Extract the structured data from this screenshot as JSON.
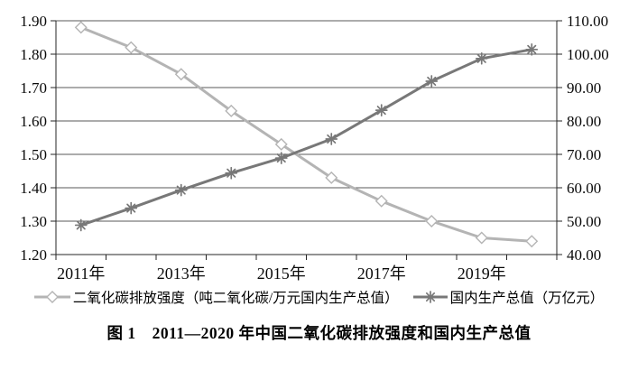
{
  "figure": {
    "caption": "图 1　2011—2020 年中国二氧化碳排放强度和国内生产总值"
  },
  "chart_data": {
    "type": "line",
    "title": "",
    "categories": [
      "2011年",
      "2012年",
      "2013年",
      "2014年",
      "2015年",
      "2016年",
      "2017年",
      "2018年",
      "2019年",
      "2020年"
    ],
    "x_tick_labels": [
      "2011年",
      "2013年",
      "2015年",
      "2017年",
      "2019年"
    ],
    "x_tick_label_indices": [
      0,
      2,
      4,
      6,
      8
    ],
    "series": [
      {
        "name": "二氧化碳排放强度（吨二氧化碳/万元国内生产总值）",
        "axis": "left",
        "marker": "diamond",
        "color": "#b4b4b4",
        "values": [
          1.88,
          1.82,
          1.74,
          1.63,
          1.53,
          1.43,
          1.36,
          1.3,
          1.25,
          1.24
        ]
      },
      {
        "name": "国内生产总值（万亿元）",
        "axis": "right",
        "marker": "star",
        "color": "#787878",
        "values": [
          48.8,
          53.9,
          59.3,
          64.4,
          68.9,
          74.6,
          83.2,
          91.9,
          98.7,
          101.4
        ]
      }
    ],
    "left_axis": {
      "min": 1.2,
      "max": 1.9,
      "step": 0.1,
      "labels": [
        "1.20",
        "1.30",
        "1.40",
        "1.50",
        "1.60",
        "1.70",
        "1.80",
        "1.90"
      ]
    },
    "right_axis": {
      "min": 40,
      "max": 110,
      "step": 10,
      "labels": [
        "40.00",
        "50.00",
        "60.00",
        "70.00",
        "80.00",
        "90.00",
        "100.00",
        "110.00"
      ]
    },
    "grid": true,
    "legend_position": "bottom"
  }
}
